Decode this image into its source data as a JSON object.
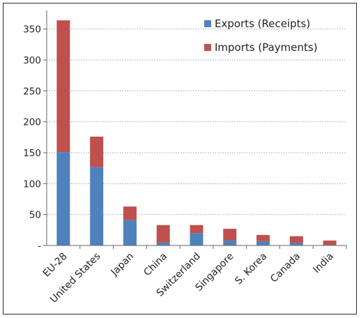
{
  "chart_data": {
    "type": "bar",
    "stacked": true,
    "categories": [
      "EU-28",
      "United States",
      "Japan",
      "China",
      "Switzerland",
      "Singapore",
      "S. Korea",
      "Canada",
      "India"
    ],
    "series": [
      {
        "name": "Exports (Receipts)",
        "color": "#4f81bd",
        "values": [
          151,
          127,
          41,
          5,
          20,
          8,
          7,
          4,
          1
        ]
      },
      {
        "name": "Imports (Payments)",
        "color": "#c0504d",
        "values": [
          213,
          49,
          22,
          28,
          13,
          19,
          10,
          11,
          7
        ]
      }
    ],
    "yticks": [
      "-",
      "50",
      "100",
      "150",
      "200",
      "250",
      "300",
      "350"
    ],
    "ylim": [
      0,
      380
    ],
    "grid": true,
    "legend_position": "top-right",
    "title": "",
    "xlabel": "",
    "ylabel": ""
  }
}
